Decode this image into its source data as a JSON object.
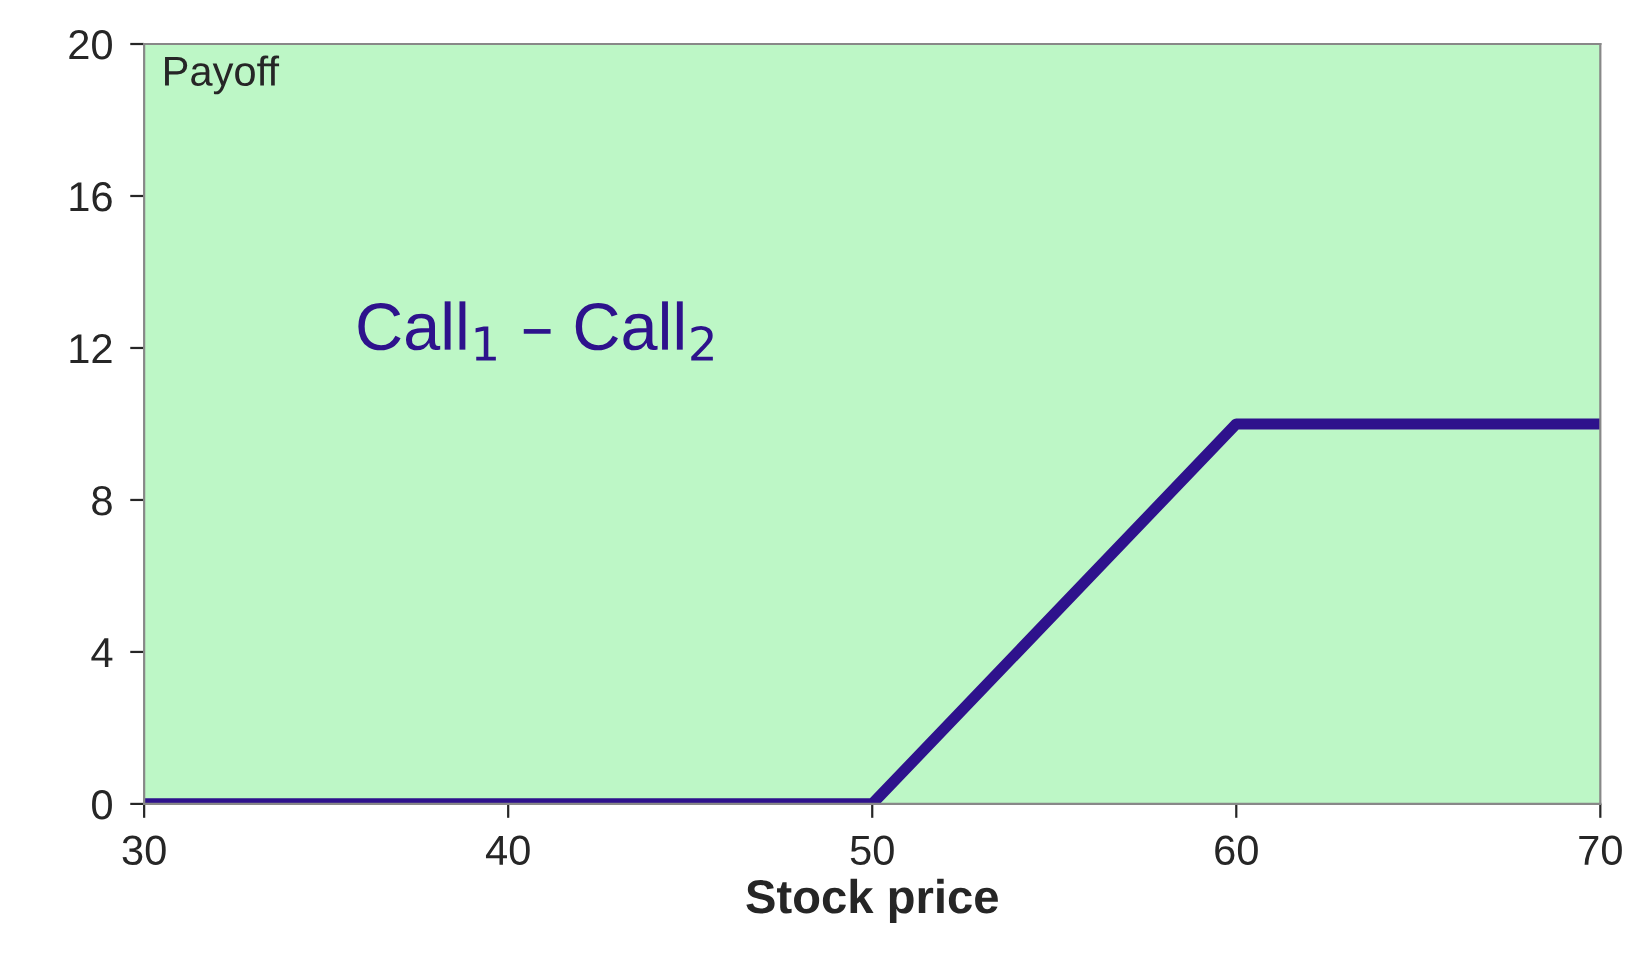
{
  "chart_data": {
    "type": "line",
    "xlabel": "Stock price",
    "ylabel": "Payoff",
    "x": [
      30,
      50,
      60,
      70
    ],
    "series": [
      {
        "name": "Call$_{1}$ – Call$_{2}$",
        "color": "#2e128c",
        "values": [
          0,
          0,
          10,
          10
        ]
      }
    ],
    "xlim": [
      30,
      70
    ],
    "xticks": [
      30,
      40,
      50,
      60,
      70
    ],
    "ylim": [
      0,
      20
    ],
    "yticks": [
      0,
      4,
      8,
      12,
      16,
      20
    ],
    "grid": false,
    "legend": false,
    "marker": "none",
    "line_style": "solid"
  }
}
